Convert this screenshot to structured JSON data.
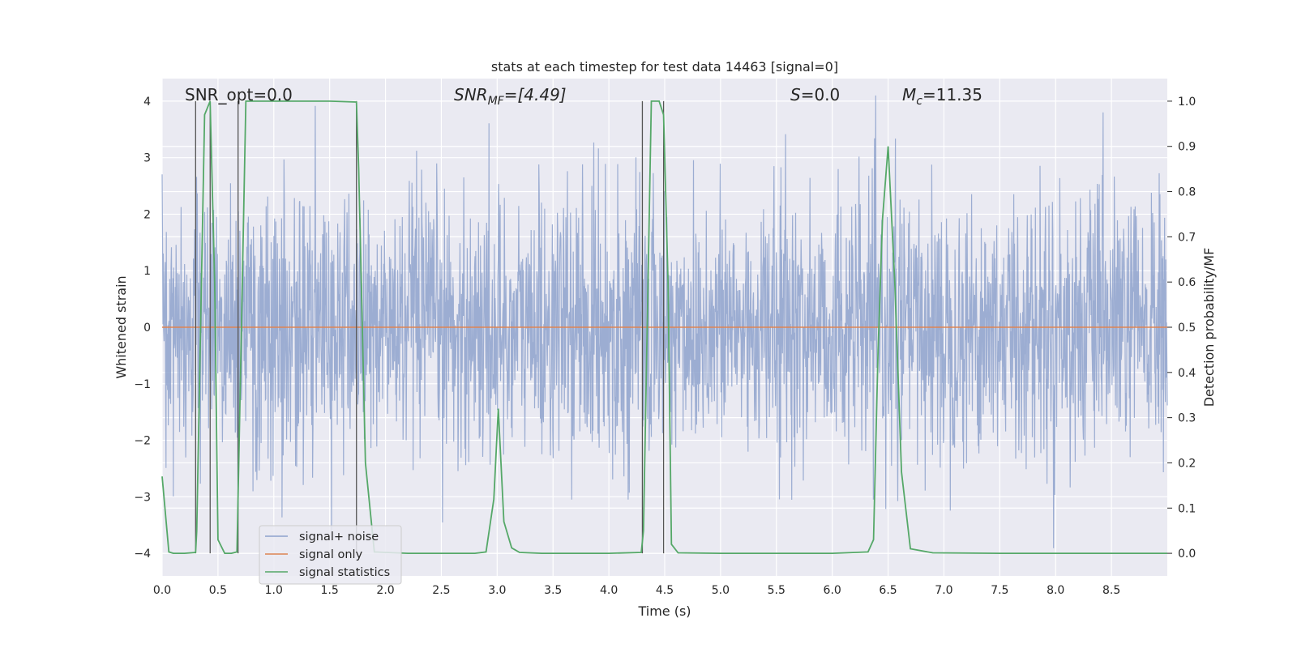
{
  "chart_data": {
    "type": "line",
    "title": "stats at each timestep for test data 14463 [signal=0]",
    "xlabel": "Time (s)",
    "ylabel": "Whitened strain",
    "ylabel_right": "Detection probability/MF",
    "xlim": [
      0.0,
      9.0
    ],
    "ylim": [
      -4.4,
      4.4
    ],
    "ylim_right": [
      -0.05,
      1.05
    ],
    "x_ticks": [
      "0.0",
      "0.5",
      "1.0",
      "1.5",
      "2.0",
      "2.5",
      "3.0",
      "3.5",
      "4.0",
      "4.5",
      "5.0",
      "5.5",
      "6.0",
      "6.5",
      "7.0",
      "7.5",
      "8.0",
      "8.5"
    ],
    "y_ticks": [
      "4",
      "3",
      "2",
      "1",
      "0",
      "−1",
      "−2",
      "−3",
      "−4"
    ],
    "y_ticks_right": [
      "1.0",
      "0.9",
      "0.8",
      "0.7",
      "0.6",
      "0.5",
      "0.4",
      "0.3",
      "0.2",
      "0.1",
      "0.0"
    ],
    "grid": true,
    "annotations": {
      "snr_opt": "SNR_opt=0.0",
      "snr_mf_name": "SNR",
      "snr_mf_sub": "MF",
      "snr_mf_value": "=[4.49]",
      "s_name": "S",
      "s_value": "=0.0",
      "mc_name": "M",
      "mc_sub": "c",
      "mc_value": "=11.35"
    },
    "legend_position": "lower-left",
    "series": [
      {
        "name": "signal+ noise",
        "color": "#8ea2cd",
        "description": "whitened noise strain, roughly within ±4"
      },
      {
        "name": "signal only",
        "color": "#dd8452",
        "values_const": 0.0
      },
      {
        "name": "signal statistics",
        "color": "#55a868",
        "axis": "right",
        "x": [
          0.0,
          0.06,
          0.1,
          0.2,
          0.3,
          0.31,
          0.38,
          0.43,
          0.47,
          0.5,
          0.56,
          0.62,
          0.67,
          0.69,
          0.75,
          1.0,
          1.5,
          1.74,
          1.76,
          1.82,
          1.9,
          2.2,
          2.8,
          2.9,
          2.97,
          3.01,
          3.06,
          3.13,
          3.2,
          3.4,
          4.0,
          4.29,
          4.31,
          4.38,
          4.45,
          4.49,
          4.53,
          4.56,
          4.62,
          5.0,
          6.0,
          6.32,
          6.37,
          6.41,
          6.45,
          6.5,
          6.56,
          6.62,
          6.7,
          6.9,
          7.5,
          8.5,
          9.0
        ],
        "values": [
          0.17,
          0.003,
          0.0,
          0.0,
          0.002,
          0.05,
          0.97,
          1.0,
          0.6,
          0.03,
          0.0,
          0.0,
          0.003,
          0.25,
          1.0,
          1.0,
          1.0,
          0.998,
          0.85,
          0.2,
          0.003,
          0.0,
          0.0,
          0.003,
          0.12,
          0.32,
          0.07,
          0.012,
          0.002,
          0.0,
          0.0,
          0.002,
          0.05,
          1.0,
          1.0,
          0.97,
          0.6,
          0.02,
          0.001,
          0.0,
          0.0,
          0.003,
          0.03,
          0.45,
          0.74,
          0.9,
          0.6,
          0.18,
          0.01,
          0.001,
          0.0,
          0.0,
          0.0
        ]
      }
    ],
    "vertical_markers": [
      0.3,
      0.43,
      0.68,
      1.74,
      4.3,
      4.49
    ]
  }
}
